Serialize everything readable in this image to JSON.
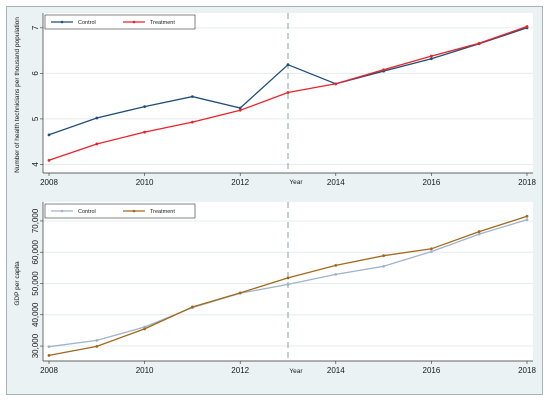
{
  "chart_data": [
    {
      "type": "line",
      "xlabel": "Year",
      "ylabel": "Number of health technicians per thousand population",
      "x": [
        2008,
        2009,
        2010,
        2011,
        2012,
        2013,
        2014,
        2015,
        2016,
        2017,
        2018
      ],
      "xticks": [
        "2008",
        "2010",
        "2012",
        "2014",
        "2016",
        "2018"
      ],
      "yticks": [
        "4",
        "5",
        "6",
        "7"
      ],
      "ylim": [
        3.9,
        7.15
      ],
      "vline": 2013,
      "grid": true,
      "legend_position": "top-left",
      "series": [
        {
          "name": "Control",
          "color": "#1f4e79",
          "values": [
            4.65,
            5.02,
            5.27,
            5.49,
            5.24,
            6.19,
            5.77,
            6.05,
            6.32,
            6.65,
            7.0
          ]
        },
        {
          "name": "Treatment",
          "color": "#e8242a",
          "values": [
            4.09,
            4.45,
            4.71,
            4.93,
            5.19,
            5.58,
            5.77,
            6.08,
            6.38,
            6.66,
            7.03
          ]
        }
      ]
    },
    {
      "type": "line",
      "xlabel": "Year",
      "ylabel": "GDP per capita",
      "x": [
        2008,
        2009,
        2010,
        2011,
        2012,
        2013,
        2014,
        2015,
        2016,
        2017,
        2018
      ],
      "xticks": [
        "2008",
        "2010",
        "2012",
        "2014",
        "2016",
        "2018"
      ],
      "yticks": [
        "30,000",
        "40,000",
        "50,000",
        "60,000",
        "70,000"
      ],
      "ytick_values": [
        30000,
        40000,
        50000,
        60000,
        70000
      ],
      "ylim": [
        26500,
        73500
      ],
      "vline": 2013,
      "grid": true,
      "legend_position": "top-left",
      "series": [
        {
          "name": "Control",
          "color": "#9fb4cc",
          "values": [
            29800,
            31800,
            36100,
            42300,
            46900,
            49700,
            52900,
            55500,
            60200,
            65800,
            70400
          ]
        },
        {
          "name": "Treatment",
          "color": "#a0691a",
          "values": [
            27000,
            29900,
            35500,
            42500,
            47000,
            51800,
            55800,
            58900,
            61100,
            66600,
            71500
          ]
        }
      ]
    }
  ]
}
